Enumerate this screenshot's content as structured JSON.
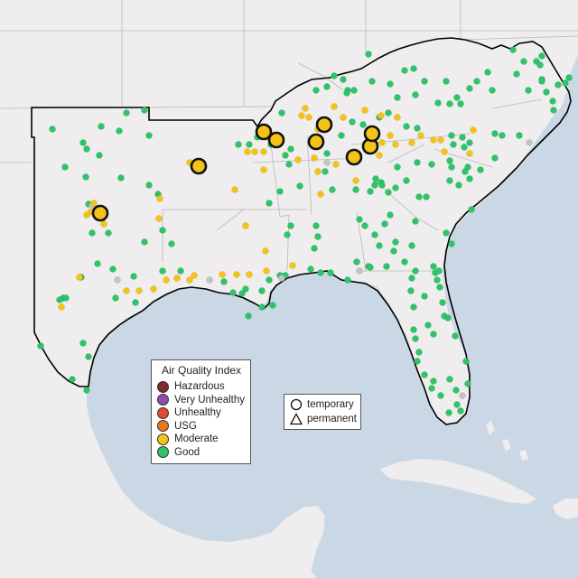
{
  "legend": {
    "title": "Air Quality Index",
    "levels": [
      {
        "label": "Hazardous",
        "color": "#7e2a2a"
      },
      {
        "label": "Very Unhealthy",
        "color": "#8f4ca8"
      },
      {
        "label": "Unhealthy",
        "color": "#e24a33"
      },
      {
        "label": "USG",
        "color": "#e8771f"
      },
      {
        "label": "Moderate",
        "color": "#f3c317"
      },
      {
        "label": "Good",
        "color": "#2ec468"
      }
    ]
  },
  "monitor_legend": {
    "temporary": "temporary",
    "permanent": "permanent"
  },
  "colors": {
    "water": "#c9d8e4",
    "land": "#efeded",
    "good": "#2ec468",
    "moderate": "#f3c317",
    "nodata": "#c4c4c4"
  }
}
